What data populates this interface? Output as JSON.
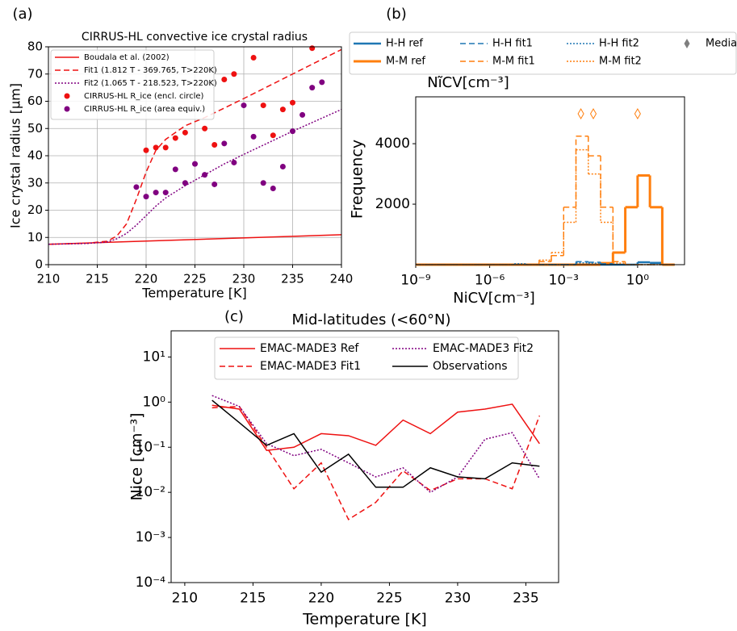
{
  "chart_data": [
    {
      "type": "line",
      "panel_label": "(a)",
      "title": "CIRRUS-HL convective ice crystal radius",
      "x_label": "Temperature [K]",
      "y_label": "Ice crystal radius [μm]",
      "xlim": [
        210,
        240
      ],
      "xticks": [
        210,
        215,
        220,
        225,
        230,
        235,
        240
      ],
      "ylim": [
        0,
        80
      ],
      "yticks": [
        0,
        10,
        20,
        30,
        40,
        50,
        60,
        70,
        80
      ],
      "grid": true,
      "series": [
        {
          "name": "Boudala et al. (2002)",
          "color": "#ee1111",
          "style": "solid",
          "x": [
            210,
            240
          ],
          "values": [
            7.5,
            11
          ]
        },
        {
          "name": "Fit1 (1.812 T - 369.765, T>220K)",
          "color": "#ee1111",
          "style": "dashed",
          "x": [
            210,
            214,
            216,
            217,
            218,
            219,
            220,
            221,
            222,
            224,
            226,
            230,
            235,
            240
          ],
          "values": [
            7.5,
            7.9,
            8.6,
            10.5,
            15,
            24,
            34,
            42,
            46,
            51,
            54,
            61,
            70,
            79
          ]
        },
        {
          "name": "Fit2 (1.065 T - 218.523, T>220K)",
          "color": "#800080",
          "style": "dotted",
          "x": [
            210,
            214,
            216,
            217,
            218,
            219,
            220,
            221,
            222,
            224,
            226,
            228,
            230,
            235,
            240
          ],
          "values": [
            7.5,
            7.8,
            8.3,
            9.5,
            11.5,
            14.5,
            18,
            21.5,
            24.5,
            29,
            33,
            37,
            40.5,
            49,
            57
          ]
        },
        {
          "name": "CIRRUS-HL R_ice (encl. circle)",
          "color": "#ee1111",
          "style": "markers",
          "x": [
            220,
            221,
            222,
            223,
            224,
            226,
            227,
            228,
            229,
            231,
            232,
            233,
            234,
            235,
            237
          ],
          "values": [
            42,
            43,
            43,
            46.5,
            48.5,
            50,
            44,
            68,
            70,
            76,
            58.5,
            47.5,
            57,
            59.5,
            79.5
          ]
        },
        {
          "name": "CIRRUS-HL R_ice (area equiv.)",
          "color": "#800080",
          "style": "markers",
          "x": [
            219,
            220,
            221,
            222,
            223,
            224,
            225,
            226,
            227,
            228,
            229,
            230,
            231,
            232,
            233,
            234,
            235,
            236,
            237,
            238
          ],
          "values": [
            28.5,
            25,
            26.5,
            26.5,
            35,
            30,
            37,
            33,
            29.5,
            44.5,
            37.5,
            58.5,
            47,
            30,
            28,
            36,
            49,
            55,
            65,
            67
          ]
        }
      ]
    },
    {
      "type": "histogram",
      "panel_label": "(b)",
      "x_label": "NiCV[cm⁻³]",
      "x2_label": "NĩCV[cm⁻³]",
      "y_label": "Frequency",
      "x_scale": "log",
      "xlim": [
        1e-09,
        80
      ],
      "xticks": [
        {
          "value": 1e-09,
          "label": "10⁻⁹"
        },
        {
          "value": 1e-06,
          "label": "10⁻⁶"
        },
        {
          "value": 0.001,
          "label": "10⁻³"
        },
        {
          "value": 1,
          "label": "10⁰"
        }
      ],
      "ylim": [
        0,
        5550
      ],
      "yticks": [
        2000,
        4000
      ],
      "bins": [
        1e-09,
        3.16e-09,
        1e-08,
        3.16e-08,
        1e-07,
        3.16e-07,
        1e-06,
        3.16e-06,
        1e-05,
        3.16e-05,
        0.0001,
        0.000316,
        0.001,
        0.00316,
        0.01,
        0.0316,
        0.1,
        0.316,
        1,
        3.16,
        10,
        31.6
      ],
      "median_label": "Median",
      "median_color": "#7f7f7f",
      "series": [
        {
          "name": "H-H ref",
          "color": "#1f77b4",
          "style": "solid",
          "linewidth": 2.5,
          "values": [
            0,
            0,
            0,
            0,
            0,
            0,
            0,
            0,
            0,
            0,
            0,
            0,
            0,
            0,
            0,
            0,
            0,
            0,
            80,
            60,
            0
          ]
        },
        {
          "name": "M-M ref",
          "color": "#ff7f0e",
          "style": "solid",
          "linewidth": 3,
          "values": [
            0,
            0,
            0,
            0,
            0,
            0,
            0,
            0,
            0,
            0,
            0,
            0,
            0,
            0,
            0,
            50,
            400,
            1900,
            2950,
            1900,
            0
          ],
          "median": 1
        },
        {
          "name": "H-H fit1",
          "color": "#1f77b4",
          "style": "dashed",
          "linewidth": 1.5,
          "values": [
            0,
            0,
            0,
            0,
            0,
            0,
            0,
            0,
            0,
            0,
            0,
            0,
            0,
            100,
            80,
            30,
            0,
            0,
            0,
            0,
            0
          ]
        },
        {
          "name": "M-M fit1",
          "color": "#ff7f0e",
          "style": "dashed",
          "linewidth": 1.5,
          "values": [
            0,
            0,
            0,
            0,
            0,
            0,
            0,
            0,
            0,
            0,
            100,
            300,
            1900,
            4250,
            3600,
            1900,
            100,
            0,
            0,
            0,
            0
          ],
          "median": 0.005
        },
        {
          "name": "H-H fit2",
          "color": "#1f77b4",
          "style": "dotted",
          "linewidth": 1.5,
          "values": [
            0,
            0,
            0,
            0,
            0,
            0,
            0,
            0,
            30,
            0,
            0,
            0,
            0,
            60,
            50,
            0,
            0,
            0,
            0,
            0,
            0
          ]
        },
        {
          "name": "M-M fit2",
          "color": "#ff7f0e",
          "style": "dotted",
          "linewidth": 1.5,
          "values": [
            0,
            0,
            0,
            0,
            0,
            0,
            0,
            0,
            0,
            0,
            150,
            400,
            1400,
            3800,
            3000,
            1400,
            50,
            0,
            0,
            0,
            0
          ],
          "median": 0.016
        }
      ]
    },
    {
      "type": "line",
      "panel_label": "(c)",
      "title": "Mid-latitudes (<60°N)",
      "x_label": "Temperature [K]",
      "y_label": "Nice [cm⁻³]",
      "xlim": [
        209,
        237.4
      ],
      "xticks": [
        210,
        215,
        220,
        225,
        230,
        235
      ],
      "y_scale": "log",
      "ylim": [
        0.0001,
        38
      ],
      "yticks": [
        {
          "value": 0.0001,
          "label": "10⁻⁴"
        },
        {
          "value": 0.001,
          "label": "10⁻³"
        },
        {
          "value": 0.01,
          "label": "10⁻²"
        },
        {
          "value": 0.1,
          "label": "10⁻¹"
        },
        {
          "value": 1,
          "label": "10⁰"
        },
        {
          "value": 10,
          "label": "10¹"
        }
      ],
      "x": [
        212,
        214,
        216,
        218,
        220,
        222,
        224,
        226,
        228,
        230,
        232,
        234,
        236
      ],
      "series": [
        {
          "name": "EMAC-MADE3 Ref",
          "color": "#ee1111",
          "style": "solid",
          "values": [
            0.85,
            0.7,
            0.085,
            0.1,
            0.2,
            0.18,
            0.11,
            0.4,
            0.2,
            0.6,
            0.7,
            0.9,
            0.12
          ]
        },
        {
          "name": "EMAC-MADE3 Fit1",
          "color": "#ee1111",
          "style": "dashed",
          "values": [
            0.75,
            0.8,
            0.1,
            0.012,
            0.045,
            0.0025,
            0.006,
            0.03,
            0.011,
            0.02,
            0.02,
            0.012,
            0.5
          ]
        },
        {
          "name": "EMAC-MADE3 Fit2",
          "color": "#800080",
          "style": "dotted",
          "values": [
            1.4,
            0.8,
            0.12,
            0.065,
            0.09,
            0.045,
            0.022,
            0.035,
            0.01,
            0.022,
            0.15,
            0.21,
            0.02
          ]
        },
        {
          "name": "Observations",
          "color": "#000000",
          "style": "solid",
          "values": [
            1.1,
            0.35,
            0.11,
            0.2,
            0.028,
            0.07,
            0.013,
            0.013,
            0.035,
            0.022,
            0.02,
            0.045,
            0.038
          ]
        }
      ]
    }
  ]
}
